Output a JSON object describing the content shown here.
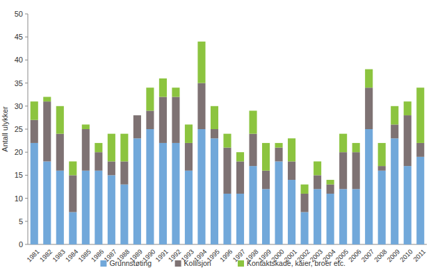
{
  "chart_data": {
    "type": "bar",
    "stacked": true,
    "grid": false,
    "legend": "bottom",
    "y_label": "Antall ulykker",
    "categories": [
      "1981",
      "1982",
      "1983",
      "1984",
      "1985",
      "1986",
      "1987",
      "1988",
      "1989",
      "1990",
      "1991",
      "1992",
      "1993",
      "1994",
      "1995",
      "1996",
      "1997",
      "1998",
      "1999",
      "2000",
      "2001",
      "2002",
      "2003",
      "2004",
      "2005",
      "2006",
      "2007",
      "2008",
      "2009",
      "2010",
      "2011"
    ],
    "series": [
      {
        "name": "Grunnstøting",
        "color": "#71a8da",
        "values": [
          22,
          18,
          16,
          7,
          16,
          16,
          15,
          13,
          23,
          25,
          22,
          22,
          16,
          25,
          23,
          11,
          11,
          17,
          12,
          18,
          14,
          7,
          12,
          11,
          12,
          12,
          25,
          16,
          23,
          17,
          19
        ]
      },
      {
        "name": "Kollisjon",
        "color": "#7e7273",
        "values": [
          5,
          13,
          8,
          8,
          9,
          4,
          3,
          5,
          5,
          4,
          10,
          10,
          6,
          10,
          2,
          10,
          7,
          7,
          4,
          3,
          4,
          4,
          3,
          2,
          8,
          8,
          9,
          1,
          3,
          11,
          3
        ]
      },
      {
        "name": "Kontaktskade, kaier, broer etc.",
        "color": "#8cc43f",
        "values": [
          4,
          1,
          6,
          3,
          1,
          2,
          6,
          6,
          0,
          5,
          4,
          2,
          4,
          9,
          5,
          3,
          2,
          5,
          6,
          1,
          5,
          2,
          3,
          1,
          4,
          2,
          4,
          5,
          4,
          3,
          12
        ]
      }
    ],
    "ylim": [
      0,
      50
    ],
    "yticks": [
      0,
      5,
      10,
      15,
      20,
      25,
      30,
      35,
      40,
      45,
      50
    ]
  }
}
